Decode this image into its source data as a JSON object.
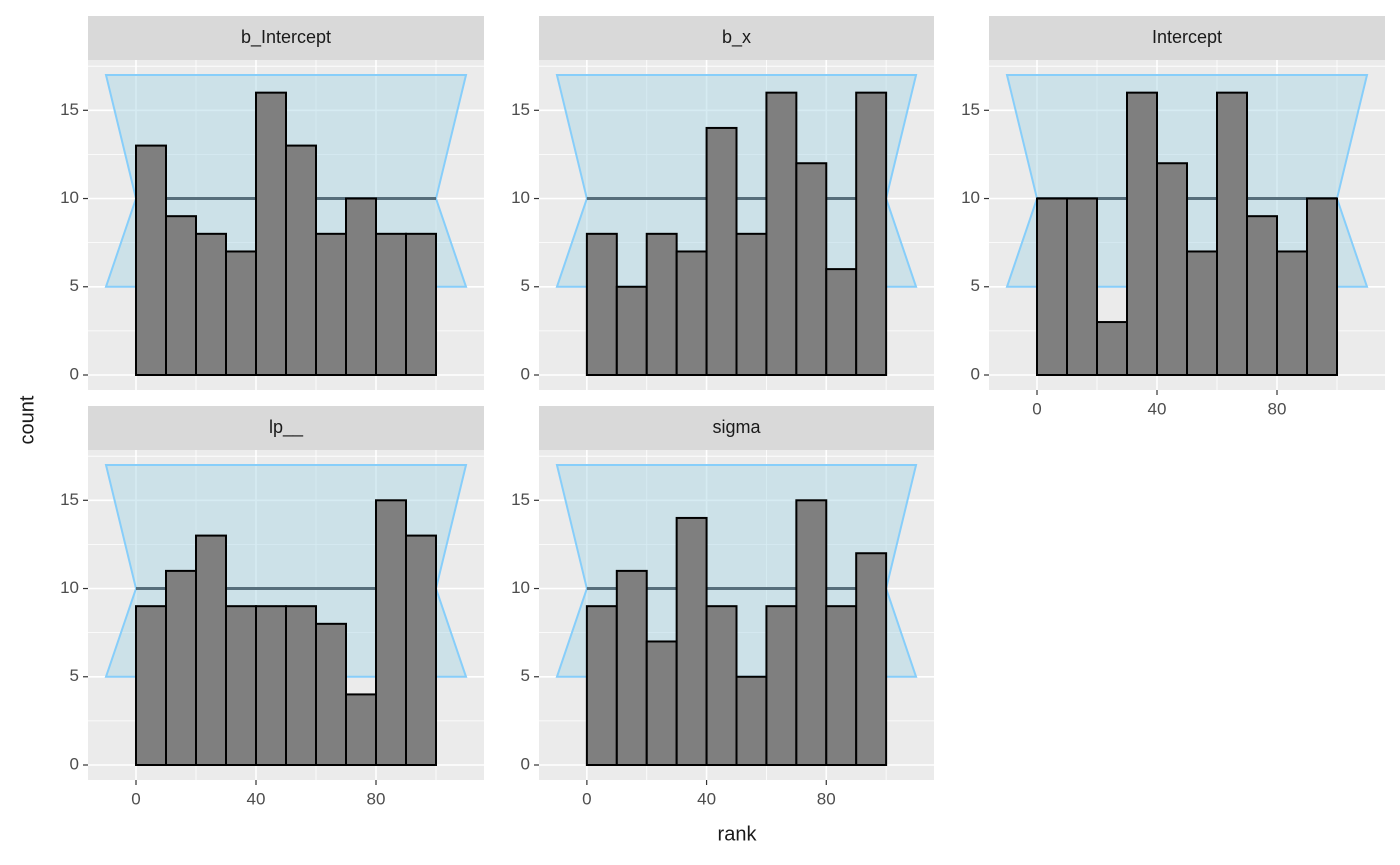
{
  "x_label": "rank",
  "y_label": "count",
  "chart_data": [
    {
      "type": "histogram",
      "title": "b_Intercept",
      "bins": [
        0,
        10,
        20,
        30,
        40,
        50,
        60,
        70,
        80,
        90,
        100
      ],
      "counts": [
        13,
        9,
        8,
        7,
        16,
        13,
        8,
        10,
        8,
        8
      ],
      "xlim": [
        -16,
        116
      ],
      "ylim": [
        -0.85,
        17.85
      ],
      "xticks": [
        0,
        40,
        80
      ],
      "yticks": [
        0,
        5,
        10,
        15
      ],
      "xticks_minor": [
        20,
        60,
        100
      ],
      "yticks_minor": [
        2.5,
        7.5,
        12.5,
        17.5
      ],
      "band": {
        "x": [
          -10,
          110,
          100,
          110,
          -10,
          0
        ],
        "y": [
          17,
          17,
          10,
          5,
          5,
          10
        ]
      },
      "expected": 10,
      "color": "#7f7f7f",
      "band_color": "#add8e6",
      "band_edge_color": "#87cefa",
      "line_color": "#566e7b",
      "grid": true
    },
    {
      "type": "histogram",
      "title": "b_x",
      "bins": [
        0,
        10,
        20,
        30,
        40,
        50,
        60,
        70,
        80,
        90,
        100
      ],
      "counts": [
        8,
        5,
        8,
        7,
        14,
        8,
        16,
        12,
        6,
        16
      ],
      "xlim": [
        -16,
        116
      ],
      "ylim": [
        -0.85,
        17.85
      ],
      "xticks": [
        0,
        40,
        80
      ],
      "yticks": [
        0,
        5,
        10,
        15
      ],
      "xticks_minor": [
        20,
        60,
        100
      ],
      "yticks_minor": [
        2.5,
        7.5,
        12.5,
        17.5
      ],
      "band": {
        "x": [
          -10,
          110,
          100,
          110,
          -10,
          0
        ],
        "y": [
          17,
          17,
          10,
          5,
          5,
          10
        ]
      },
      "expected": 10,
      "color": "#7f7f7f",
      "band_color": "#add8e6",
      "band_edge_color": "#87cefa",
      "line_color": "#566e7b",
      "grid": true
    },
    {
      "type": "histogram",
      "title": "Intercept",
      "bins": [
        0,
        10,
        20,
        30,
        40,
        50,
        60,
        70,
        80,
        90,
        100
      ],
      "counts": [
        10,
        10,
        3,
        16,
        12,
        7,
        16,
        9,
        7,
        10
      ],
      "xlim": [
        -16,
        116
      ],
      "ylim": [
        -0.85,
        17.85
      ],
      "xticks": [
        0,
        40,
        80
      ],
      "yticks": [
        0,
        5,
        10,
        15
      ],
      "xticks_minor": [
        20,
        60,
        100
      ],
      "yticks_minor": [
        2.5,
        7.5,
        12.5,
        17.5
      ],
      "band": {
        "x": [
          -10,
          110,
          100,
          110,
          -10,
          0
        ],
        "y": [
          17,
          17,
          10,
          5,
          5,
          10
        ]
      },
      "expected": 10,
      "color": "#7f7f7f",
      "band_color": "#add8e6",
      "band_edge_color": "#87cefa",
      "line_color": "#566e7b",
      "grid": true
    },
    {
      "type": "histogram",
      "title": "lp__",
      "bins": [
        0,
        10,
        20,
        30,
        40,
        50,
        60,
        70,
        80,
        90,
        100
      ],
      "counts": [
        9,
        11,
        13,
        9,
        9,
        9,
        8,
        4,
        15,
        13
      ],
      "xlim": [
        -16,
        116
      ],
      "ylim": [
        -0.85,
        17.85
      ],
      "xticks": [
        0,
        40,
        80
      ],
      "yticks": [
        0,
        5,
        10,
        15
      ],
      "xticks_minor": [
        20,
        60,
        100
      ],
      "yticks_minor": [
        2.5,
        7.5,
        12.5,
        17.5
      ],
      "band": {
        "x": [
          -10,
          110,
          100,
          110,
          -10,
          0
        ],
        "y": [
          17,
          17,
          10,
          5,
          5,
          10
        ]
      },
      "expected": 10,
      "color": "#7f7f7f",
      "band_color": "#add8e6",
      "band_edge_color": "#87cefa",
      "line_color": "#566e7b",
      "grid": true
    },
    {
      "type": "histogram",
      "title": "sigma",
      "bins": [
        0,
        10,
        20,
        30,
        40,
        50,
        60,
        70,
        80,
        90,
        100
      ],
      "counts": [
        9,
        11,
        7,
        14,
        9,
        5,
        9,
        15,
        9,
        12
      ],
      "xlim": [
        -16,
        116
      ],
      "ylim": [
        -0.85,
        17.85
      ],
      "xticks": [
        0,
        40,
        80
      ],
      "yticks": [
        0,
        5,
        10,
        15
      ],
      "xticks_minor": [
        20,
        60,
        100
      ],
      "yticks_minor": [
        2.5,
        7.5,
        12.5,
        17.5
      ],
      "band": {
        "x": [
          -10,
          110,
          100,
          110,
          -10,
          0
        ],
        "y": [
          17,
          17,
          10,
          5,
          5,
          10
        ]
      },
      "expected": 10,
      "color": "#7f7f7f",
      "band_color": "#add8e6",
      "band_edge_color": "#87cefa",
      "line_color": "#566e7b",
      "grid": true
    }
  ]
}
